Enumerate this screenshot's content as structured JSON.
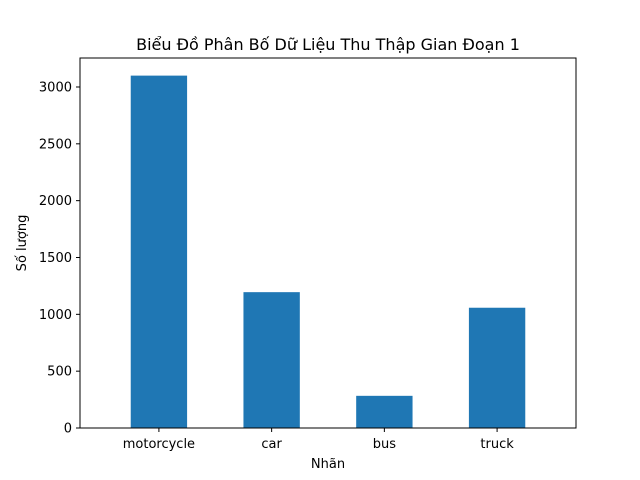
{
  "chart_data": {
    "type": "bar",
    "title": "Biểu Đồ Phân Bố Dữ Liệu Thu Thập Gian Đoạn 1",
    "xlabel": "Nhãn",
    "ylabel": "Số lượng",
    "categories": [
      "motorcycle",
      "car",
      "bus",
      "truck"
    ],
    "values": [
      3100,
      1195,
      283,
      1058
    ],
    "ylim": [
      0,
      3255
    ],
    "yticks": [
      0,
      500,
      1000,
      1500,
      2000,
      2500,
      3000
    ],
    "grid": false,
    "bar_color": "#1f77b4"
  }
}
